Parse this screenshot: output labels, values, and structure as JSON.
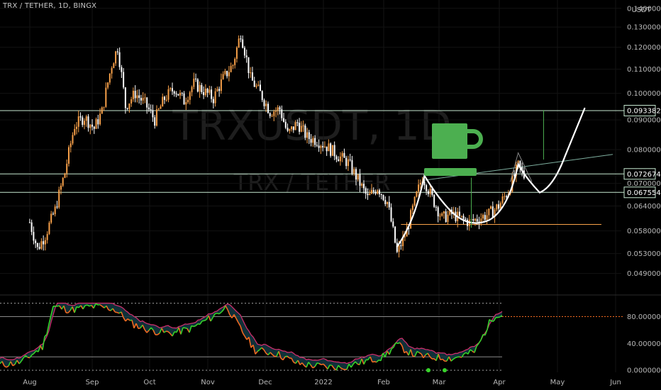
{
  "chart_title": "TRX / TETHER, 1D, BINGX",
  "currency": "USDT",
  "watermark": {
    "symbol": "TRXUSDT, 1D",
    "name": "TRX / TETHER"
  },
  "colors": {
    "up": "#f7a049",
    "down": "#ffffff",
    "hline": "#c6e8d0",
    "trend": "#7fb0a0",
    "support": "#f7a049",
    "cup": "#4caf50",
    "stoch_k": "#37d42a",
    "stoch_k2": "#f26a21",
    "stoch_d": "#cc2e6b",
    "stoch_fill": "#12353f"
  },
  "chart_data": [
    {
      "type": "candlestick",
      "symbol": "TRX / TETHER",
      "interval": "1D",
      "exchange": "BINGX",
      "x_ticks": [
        "Aug",
        "Sep",
        "Oct",
        "Nov",
        "Dec",
        "2022",
        "Feb",
        "Mar",
        "Apr",
        "May",
        "Jun"
      ],
      "y_ticks": [
        "0.049000",
        "0.053000",
        "0.058000",
        "0.064000",
        "0.070000",
        "0.080000",
        "0.090000",
        "0.100000",
        "0.110000",
        "0.120000",
        "0.130000",
        "0.140000"
      ],
      "y_tick_values": [
        0.049,
        0.053,
        0.058,
        0.064,
        0.07,
        0.08,
        0.09,
        0.1,
        0.11,
        0.12,
        0.13,
        0.14
      ],
      "ylim": [
        0.0455,
        0.1415
      ],
      "y_scale": "log",
      "price_labels": [
        "0.093382",
        "0.072674",
        "0.067554"
      ],
      "price_label_values": [
        0.093382,
        0.072674,
        0.067554
      ],
      "support_level": 0.0595,
      "close_path": [
        [
          "Jul 26",
          0.06
        ],
        [
          "Jul 30",
          0.054
        ],
        [
          "Aug 3",
          0.057
        ],
        [
          "Aug 8",
          0.063
        ],
        [
          "Aug 13",
          0.073
        ],
        [
          "Aug 18",
          0.088
        ],
        [
          "Aug 23",
          0.091
        ],
        [
          "Aug 28",
          0.087
        ],
        [
          "Sep 1",
          0.093
        ],
        [
          "Sep 6",
          0.112
        ],
        [
          "Sep 9",
          0.12
        ],
        [
          "Sep 13",
          0.095
        ],
        [
          "Sep 18",
          0.1
        ],
        [
          "Sep 23",
          0.096
        ],
        [
          "Sep 28",
          0.09
        ],
        [
          "Oct 3",
          0.098
        ],
        [
          "Oct 8",
          0.102
        ],
        [
          "Oct 13",
          0.097
        ],
        [
          "Oct 18",
          0.104
        ],
        [
          "Oct 23",
          0.101
        ],
        [
          "Oct 28",
          0.098
        ],
        [
          "Nov 2",
          0.106
        ],
        [
          "Nov 7",
          0.112
        ],
        [
          "Nov 11",
          0.127
        ],
        [
          "Nov 16",
          0.106
        ],
        [
          "Nov 21",
          0.1
        ],
        [
          "Nov 26",
          0.093
        ],
        [
          "Dec 1",
          0.094
        ],
        [
          "Dec 5",
          0.085
        ],
        [
          "Dec 10",
          0.089
        ],
        [
          "Dec 15",
          0.084
        ],
        [
          "Dec 20",
          0.083
        ],
        [
          "Dec 25",
          0.081
        ],
        [
          "Dec 31",
          0.078
        ],
        [
          "Jan 5",
          0.076
        ],
        [
          "Jan 10",
          0.071
        ],
        [
          "Jan 15",
          0.066
        ],
        [
          "Jan 20",
          0.069
        ],
        [
          "Jan 25",
          0.065
        ],
        [
          "Jan 30",
          0.053
        ],
        [
          "Feb 4",
          0.058
        ],
        [
          "Feb 8",
          0.065
        ],
        [
          "Feb 12",
          0.072
        ],
        [
          "Feb 17",
          0.066
        ],
        [
          "Feb 22",
          0.061
        ],
        [
          "Feb 27",
          0.062
        ],
        [
          "Mar 3",
          0.061
        ],
        [
          "Mar 8",
          0.06
        ],
        [
          "Mar 13",
          0.061
        ],
        [
          "Mar 18",
          0.062
        ],
        [
          "Mar 23",
          0.064
        ],
        [
          "Mar 28",
          0.068
        ],
        [
          "Apr 2",
          0.075
        ],
        [
          "Apr 5",
          0.072
        ]
      ],
      "annotations": {
        "drawn_projection": "cup-and-handle",
        "icon": "coffee-cup-icon"
      }
    },
    {
      "type": "line",
      "indicator": "stochastic-rsi",
      "y_ticks": [
        "0.000000",
        "40.000000",
        "80.000000"
      ],
      "y_tick_values": [
        0,
        40,
        80
      ],
      "levels": [
        0,
        20,
        80,
        100
      ],
      "current_value": 80,
      "ylim": [
        -3,
        108
      ]
    }
  ]
}
